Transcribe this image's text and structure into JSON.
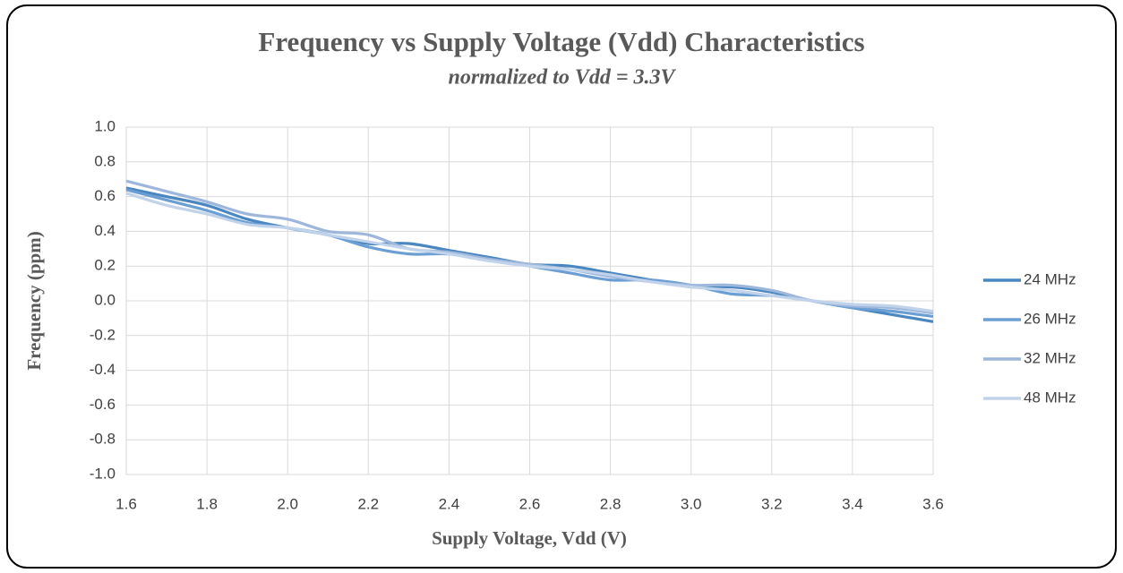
{
  "chart_data": {
    "type": "line",
    "title": "Frequency vs Supply Voltage (Vdd) Characteristics",
    "subtitle": "normalized to Vdd = 3.3V",
    "x_label": "Supply Voltage, Vdd (V)",
    "y_label": "Frequency (ppm)",
    "x": [
      1.6,
      1.7,
      1.8,
      1.9,
      2.0,
      2.1,
      2.2,
      2.3,
      2.4,
      2.5,
      2.6,
      2.7,
      2.8,
      2.9,
      3.0,
      3.1,
      3.2,
      3.3,
      3.4,
      3.5,
      3.6
    ],
    "series": [
      {
        "name": "24 MHz",
        "color": "#4a86c0",
        "values": [
          0.65,
          0.6,
          0.55,
          0.47,
          0.42,
          0.38,
          0.33,
          0.33,
          0.29,
          0.25,
          0.21,
          0.2,
          0.16,
          0.12,
          0.08,
          0.08,
          0.05,
          0.0,
          -0.04,
          -0.08,
          -0.12
        ]
      },
      {
        "name": "26 MHz",
        "color": "#6b9fd4",
        "values": [
          0.64,
          0.58,
          0.52,
          0.45,
          0.42,
          0.38,
          0.31,
          0.27,
          0.27,
          0.24,
          0.2,
          0.16,
          0.12,
          0.12,
          0.09,
          0.04,
          0.03,
          0.0,
          -0.04,
          -0.06,
          -0.09
        ]
      },
      {
        "name": "32 MHz",
        "color": "#9db7dc",
        "values": [
          0.69,
          0.63,
          0.57,
          0.5,
          0.47,
          0.4,
          0.38,
          0.3,
          0.28,
          0.24,
          0.21,
          0.18,
          0.14,
          0.11,
          0.09,
          0.09,
          0.06,
          0.0,
          -0.03,
          -0.04,
          -0.07
        ]
      },
      {
        "name": "48 MHz",
        "color": "#c1d3ea",
        "values": [
          0.62,
          0.55,
          0.5,
          0.44,
          0.42,
          0.38,
          0.34,
          0.3,
          0.27,
          0.23,
          0.2,
          0.18,
          0.15,
          0.11,
          0.08,
          0.06,
          0.03,
          0.0,
          -0.02,
          -0.03,
          -0.06
        ]
      }
    ],
    "xlim": [
      1.6,
      3.6
    ],
    "xticks": [
      1.6,
      1.8,
      {
        "value": 2.0,
        "label": "2.0"
      },
      2.2,
      2.4,
      2.6,
      2.8,
      {
        "value": 3.0,
        "label": "3.0"
      },
      3.2,
      3.4,
      3.6
    ],
    "ylim": [
      -1.0,
      1.0
    ],
    "yticks": [
      {
        "value": -1.0,
        "label": "-1.0"
      },
      -0.8,
      -0.6,
      -0.4,
      -0.2,
      {
        "value": 0.0,
        "label": "0.0"
      },
      0.2,
      0.4,
      0.6,
      0.8,
      {
        "value": 1.0,
        "label": "1.0"
      }
    ],
    "grid": true,
    "legend": "right"
  }
}
